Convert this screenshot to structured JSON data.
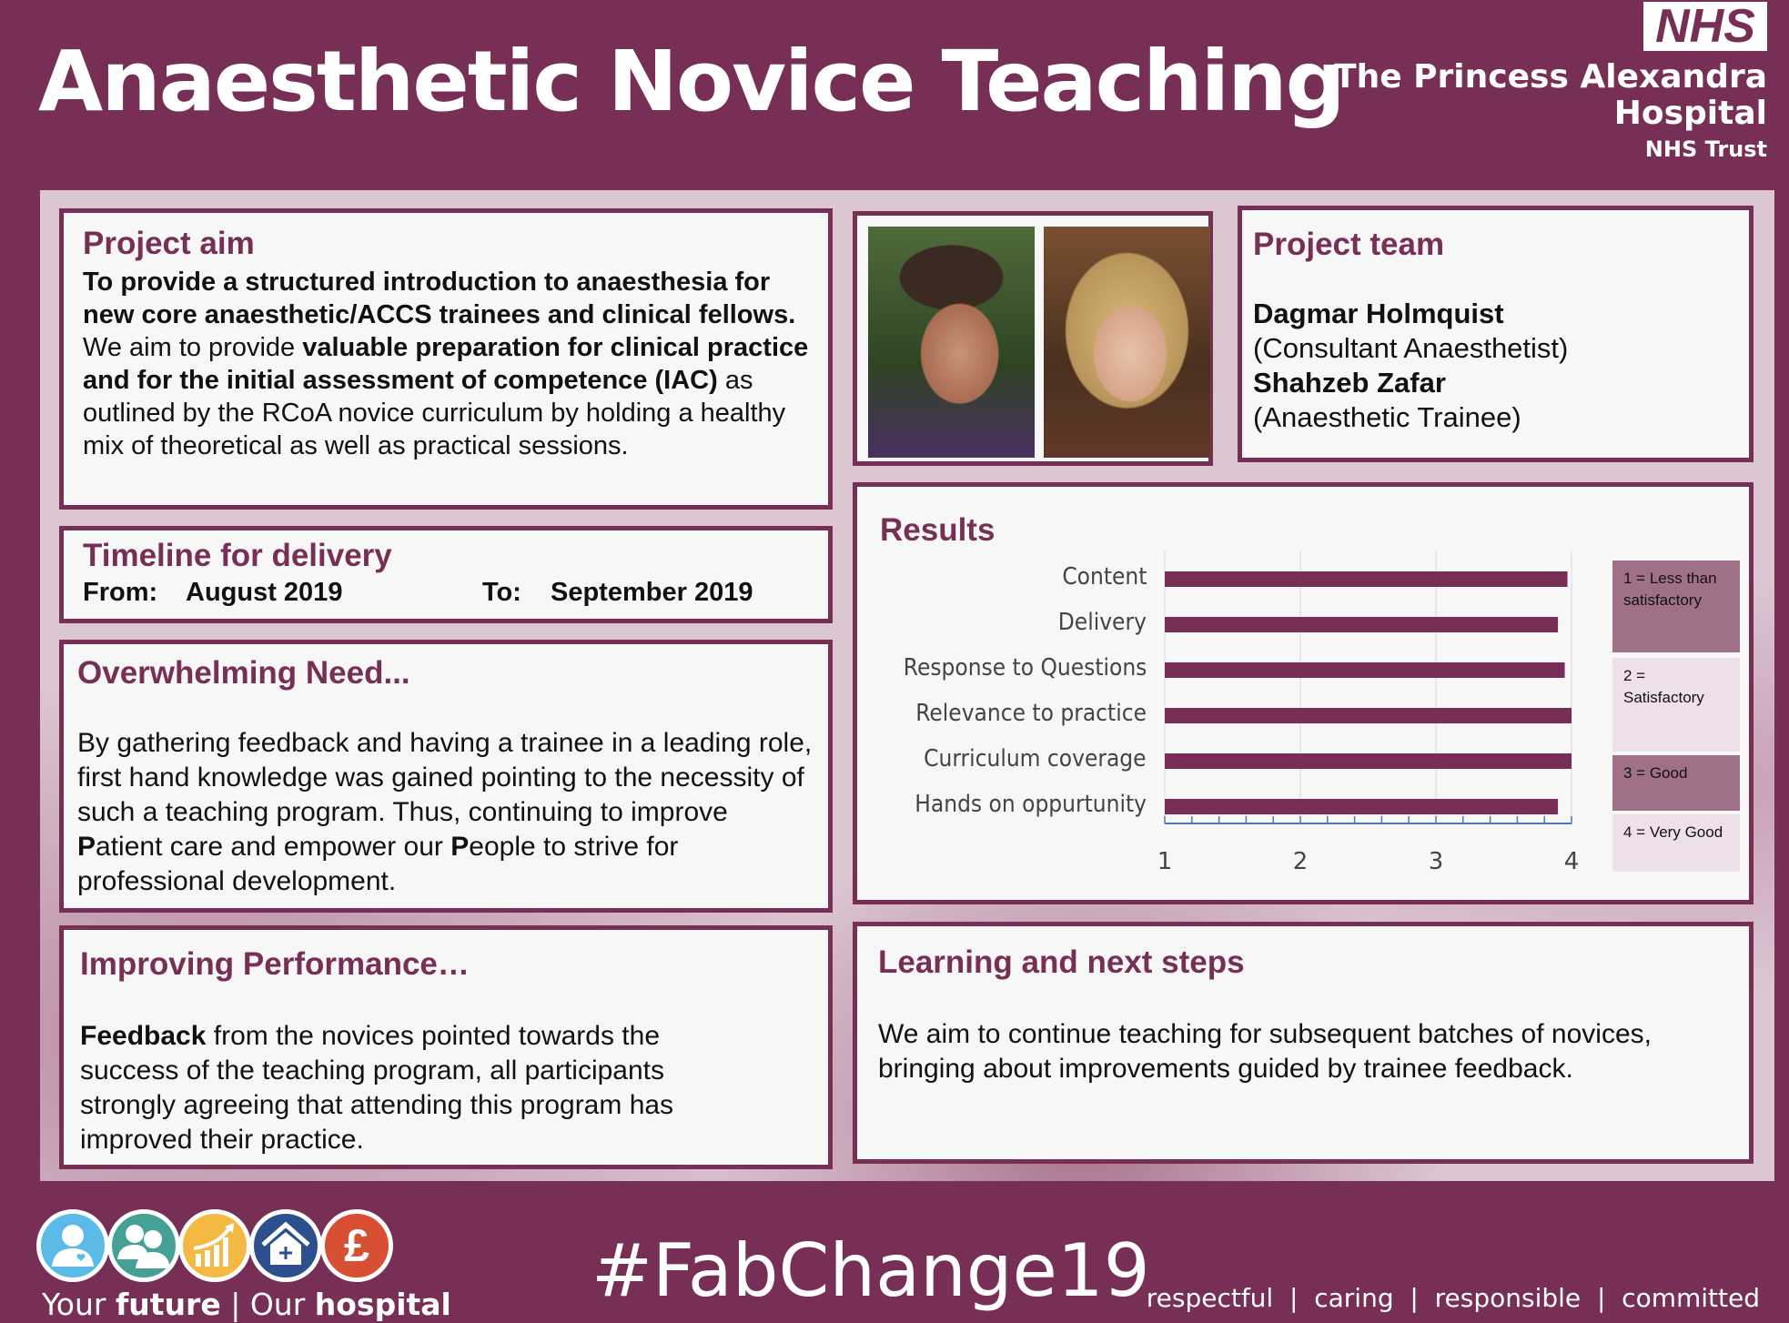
{
  "header": {
    "title": "Anaesthetic Novice Teaching",
    "nhs_logo": "NHS",
    "org_line1": "The Princess Alexandra",
    "org_line2": "Hospital",
    "org_line3": "NHS Trust"
  },
  "colors": {
    "brand": "#772f55",
    "legend_dark": "#a07088",
    "legend_light": "#eee0e8"
  },
  "aim": {
    "heading": "Project aim",
    "bold1": "To provide a structured introduction to anaesthesia for new core anaesthetic/ACCS trainees and clinical fellows.",
    "text1": " We aim to provide ",
    "bold2": "valuable preparation for clinical practice and for the initial assessment of competence (IAC)",
    "text2": " as outlined by the RCoA novice curriculum by holding a healthy mix of theoretical as well as practical sessions."
  },
  "timeline": {
    "heading": "Timeline for delivery",
    "from_label": "From:",
    "from_value": "August 2019",
    "to_label": "To:",
    "to_value": "September 2019"
  },
  "need": {
    "heading": "Overwhelming Need...",
    "text1": "By gathering feedback and having a trainee in a leading role, first hand knowledge was gained pointing to the necessity of such a teaching program. Thus, continuing to improve ",
    "b1": "P",
    "text2": "atient care and empower our ",
    "b2": "P",
    "text3": "eople to strive for professional development."
  },
  "performance": {
    "heading": "Improving Performance…",
    "bold": "Feedback",
    "text": " from the novices pointed towards the success of the teaching program, all participants strongly agreeing that attending this program has improved their practice."
  },
  "team": {
    "heading": "Project team",
    "members": [
      {
        "name": "Dagmar Holmquist",
        "role": "(Consultant Anaesthetist)"
      },
      {
        "name": "Shahzeb Zafar",
        "role": "(Anaesthetic Trainee)"
      }
    ]
  },
  "results": {
    "heading": "Results"
  },
  "chart_data": {
    "type": "bar",
    "orientation": "horizontal",
    "categories": [
      "Content",
      "Delivery",
      "Response to Questions",
      "Relevance to practice",
      "Curriculum coverage",
      "Hands on oppurtunity"
    ],
    "values": [
      3.97,
      3.9,
      3.95,
      4.0,
      4.0,
      3.9
    ],
    "xlim": [
      1,
      4
    ],
    "xticks": [
      "1",
      "2",
      "3",
      "4"
    ],
    "grid": true,
    "bar_color": "#772f55",
    "legend": [
      {
        "text": "1 = Less than satisfactory",
        "color": "#a07088"
      },
      {
        "text": "2 = Satisfactory",
        "color": "#eee0e8"
      },
      {
        "text": "3 = Good",
        "color": "#a07088"
      },
      {
        "text": "4 = Very Good",
        "color": "#eee0e8"
      }
    ],
    "legend_placement": "right"
  },
  "learning": {
    "heading": "Learning and next steps",
    "text": "We aim to continue teaching for subsequent batches of novices, bringing about improvements guided by trainee feedback."
  },
  "footer": {
    "tagline_1": "Your ",
    "tagline_2": "future",
    "tagline_3": " | Our ",
    "tagline_4": "hospital",
    "hashtag": "#FabChange19",
    "values": "respectful  |  caring  |  responsible  |  committed",
    "icons": [
      "patient-heart-icon",
      "people-icon",
      "growth-chart-icon",
      "house-plus-icon",
      "pound-icon"
    ]
  }
}
